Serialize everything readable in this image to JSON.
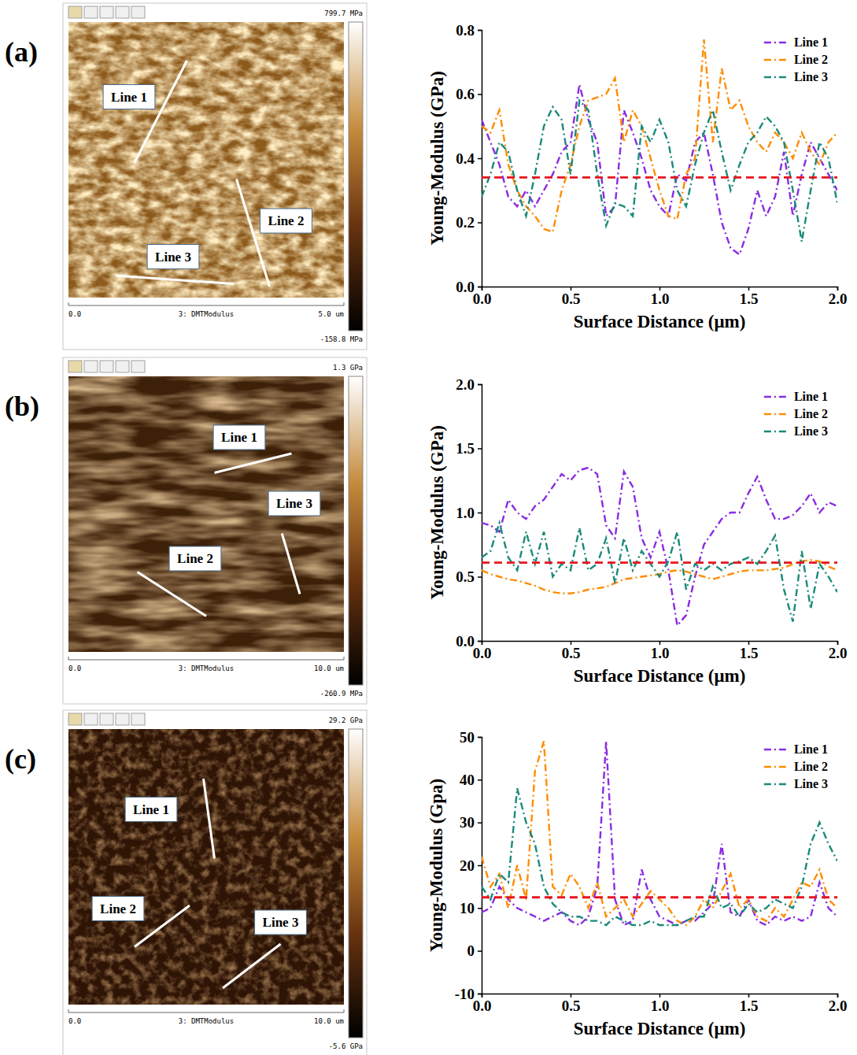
{
  "images": [
    {
      "panel_label": "(a)",
      "scale_max": "799.7 MPa",
      "scale_min": "-158.8 MPa",
      "x_start": "0.0",
      "channel": "3: DMTModulus",
      "x_end": "5.0 um",
      "lines": [
        "Line 1",
        "Line 2",
        "Line 3"
      ]
    },
    {
      "panel_label": "(b)",
      "scale_max": "1.3 GPa",
      "scale_min": "-260.9 MPa",
      "x_start": "0.0",
      "channel": "3: DMTModulus",
      "x_end": "10.0 um",
      "lines": [
        "Line 1",
        "Line 2",
        "Line 3"
      ]
    },
    {
      "panel_label": "(c)",
      "scale_max": "29.2 GPa",
      "scale_min": "-5.6 GPa",
      "x_start": "0.0",
      "channel": "3: DMTModulus",
      "x_end": "10.0 um",
      "lines": [
        "Line 1",
        "Line 2",
        "Line 3"
      ]
    }
  ],
  "chart_data": [
    {
      "type": "line",
      "x_label": "Surface Distance (μm)",
      "y_label": "Young-Modulus (GPa)",
      "x": [
        0,
        0.05,
        0.1,
        0.15,
        0.2,
        0.25,
        0.3,
        0.35,
        0.4,
        0.45,
        0.5,
        0.55,
        0.6,
        0.65,
        0.7,
        0.75,
        0.8,
        0.85,
        0.9,
        0.95,
        1,
        1.05,
        1.1,
        1.15,
        1.2,
        1.25,
        1.3,
        1.35,
        1.4,
        1.45,
        1.5,
        1.55,
        1.6,
        1.65,
        1.7,
        1.75,
        1.8,
        1.85,
        1.9,
        1.95,
        2
      ],
      "xlim": [
        0,
        2
      ],
      "xticks": [
        {
          "value": 0,
          "label": "0.0"
        },
        0.5,
        {
          "value": 1,
          "label": "1.0"
        },
        1.5,
        {
          "value": 2,
          "label": "2.0"
        }
      ],
      "ylim": [
        0,
        0.8
      ],
      "yticks": [
        {
          "value": 0,
          "label": "0.0"
        },
        0.2,
        0.4,
        0.6,
        0.8
      ],
      "mean_line": 0.34,
      "legend": "upper right",
      "line_style": "dashdot",
      "series": [
        {
          "name": "Line 1",
          "color": "#8a2be2",
          "values": [
            0.52,
            0.45,
            0.38,
            0.28,
            0.25,
            0.3,
            0.25,
            0.3,
            0.35,
            0.42,
            0.45,
            0.63,
            0.52,
            0.45,
            0.22,
            0.25,
            0.55,
            0.48,
            0.4,
            0.3,
            0.25,
            0.22,
            0.35,
            0.33,
            0.45,
            0.48,
            0.35,
            0.2,
            0.12,
            0.1,
            0.18,
            0.3,
            0.22,
            0.28,
            0.42,
            0.22,
            0.35,
            0.45,
            0.4,
            0.35,
            0.3
          ]
        },
        {
          "name": "Line 2",
          "color": "#ff8c00",
          "values": [
            0.5,
            0.48,
            0.55,
            0.38,
            0.3,
            0.25,
            0.22,
            0.18,
            0.17,
            0.3,
            0.38,
            0.5,
            0.58,
            0.59,
            0.6,
            0.65,
            0.45,
            0.55,
            0.5,
            0.4,
            0.3,
            0.22,
            0.21,
            0.35,
            0.4,
            0.77,
            0.45,
            0.68,
            0.55,
            0.58,
            0.5,
            0.45,
            0.42,
            0.48,
            0.45,
            0.4,
            0.48,
            0.42,
            0.38,
            0.45,
            0.48
          ]
        },
        {
          "name": "Line 3",
          "color": "#1a8a7a",
          "values": [
            0.28,
            0.35,
            0.45,
            0.42,
            0.3,
            0.22,
            0.35,
            0.5,
            0.56,
            0.52,
            0.35,
            0.58,
            0.55,
            0.35,
            0.19,
            0.26,
            0.25,
            0.22,
            0.5,
            0.45,
            0.52,
            0.45,
            0.3,
            0.25,
            0.38,
            0.48,
            0.55,
            0.42,
            0.3,
            0.38,
            0.45,
            0.48,
            0.53,
            0.5,
            0.45,
            0.3,
            0.14,
            0.3,
            0.45,
            0.4,
            0.26
          ]
        }
      ]
    },
    {
      "type": "line",
      "x_label": "Surface Distance (μm)",
      "y_label": "Young-Modulus (GPa)",
      "x": [
        0,
        0.05,
        0.1,
        0.15,
        0.2,
        0.25,
        0.3,
        0.35,
        0.4,
        0.45,
        0.5,
        0.55,
        0.6,
        0.65,
        0.7,
        0.75,
        0.8,
        0.85,
        0.9,
        0.95,
        1,
        1.05,
        1.1,
        1.15,
        1.2,
        1.25,
        1.3,
        1.35,
        1.4,
        1.45,
        1.5,
        1.55,
        1.6,
        1.65,
        1.7,
        1.75,
        1.8,
        1.85,
        1.9,
        1.95,
        2
      ],
      "xlim": [
        0,
        2
      ],
      "xticks": [
        {
          "value": 0,
          "label": "0.0"
        },
        0.5,
        {
          "value": 1,
          "label": "1.0"
        },
        1.5,
        {
          "value": 2,
          "label": "2.0"
        }
      ],
      "ylim": [
        0,
        2
      ],
      "yticks": [
        {
          "value": 0,
          "label": "0.0"
        },
        0.5,
        {
          "value": 1,
          "label": "1.0"
        },
        1.5,
        {
          "value": 2,
          "label": "2.0"
        }
      ],
      "mean_line": 0.61,
      "legend": "upper right",
      "line_style": "dashdot",
      "series": [
        {
          "name": "Line 1",
          "color": "#8a2be2",
          "values": [
            0.92,
            0.9,
            0.85,
            1.1,
            1.0,
            0.95,
            1.05,
            1.1,
            1.2,
            1.3,
            1.25,
            1.33,
            1.35,
            1.3,
            0.9,
            0.8,
            1.32,
            1.2,
            0.8,
            0.65,
            0.85,
            0.55,
            0.12,
            0.2,
            0.5,
            0.75,
            0.85,
            0.95,
            1.0,
            1.0,
            1.15,
            1.28,
            1.1,
            0.95,
            0.95,
            0.98,
            1.05,
            1.15,
            1.0,
            1.08,
            1.05
          ]
        },
        {
          "name": "Line 2",
          "color": "#ff8c00",
          "values": [
            0.55,
            0.52,
            0.5,
            0.48,
            0.47,
            0.45,
            0.43,
            0.4,
            0.38,
            0.37,
            0.37,
            0.38,
            0.4,
            0.41,
            0.42,
            0.45,
            0.48,
            0.49,
            0.5,
            0.51,
            0.52,
            0.54,
            0.55,
            0.54,
            0.52,
            0.5,
            0.48,
            0.5,
            0.52,
            0.54,
            0.55,
            0.55,
            0.55,
            0.56,
            0.57,
            0.6,
            0.62,
            0.63,
            0.62,
            0.58,
            0.55
          ]
        },
        {
          "name": "Line 3",
          "color": "#1a8a7a",
          "values": [
            0.65,
            0.7,
            0.92,
            0.65,
            0.55,
            0.85,
            0.6,
            0.85,
            0.5,
            0.6,
            0.55,
            0.88,
            0.55,
            0.6,
            0.8,
            0.45,
            0.8,
            0.55,
            0.7,
            0.6,
            0.5,
            0.62,
            0.85,
            0.4,
            0.6,
            0.55,
            0.6,
            0.55,
            0.6,
            0.62,
            0.65,
            0.6,
            0.7,
            0.82,
            0.4,
            0.15,
            0.7,
            0.25,
            0.6,
            0.5,
            0.38
          ]
        }
      ]
    },
    {
      "type": "line",
      "x_label": "Surface Distance (μm)",
      "y_label": "Young-Modulus (Gpa)",
      "x": [
        0,
        0.05,
        0.1,
        0.15,
        0.2,
        0.25,
        0.3,
        0.35,
        0.4,
        0.45,
        0.5,
        0.55,
        0.6,
        0.65,
        0.7,
        0.75,
        0.8,
        0.85,
        0.9,
        0.95,
        1,
        1.05,
        1.1,
        1.15,
        1.2,
        1.25,
        1.3,
        1.35,
        1.4,
        1.45,
        1.5,
        1.55,
        1.6,
        1.65,
        1.7,
        1.75,
        1.8,
        1.85,
        1.9,
        1.95,
        2
      ],
      "xlim": [
        0,
        2
      ],
      "xticks": [
        {
          "value": 0,
          "label": "0.0"
        },
        0.5,
        {
          "value": 1,
          "label": "1.0"
        },
        1.5,
        {
          "value": 2,
          "label": "2.0"
        }
      ],
      "ylim": [
        -10,
        50
      ],
      "yticks": [
        -10,
        0,
        10,
        20,
        30,
        40,
        50
      ],
      "mean_line": 12.5,
      "legend": "upper right",
      "line_style": "dashdot",
      "series": [
        {
          "name": "Line 1",
          "color": "#8a2be2",
          "values": [
            9,
            10,
            15,
            12,
            10,
            9,
            8,
            7,
            8,
            9,
            7,
            6,
            8,
            15,
            49,
            12,
            6,
            7,
            19,
            12,
            8,
            7,
            6,
            7,
            7,
            9,
            11,
            25,
            9,
            8,
            12,
            7,
            6,
            8,
            7,
            8,
            7,
            8,
            16,
            10,
            8
          ]
        },
        {
          "name": "Line 2",
          "color": "#ff8c00",
          "values": [
            22,
            15,
            18,
            10,
            20,
            12,
            42,
            49,
            15,
            13,
            18,
            15,
            10,
            16,
            8,
            10,
            12,
            8,
            11,
            14,
            12,
            10,
            7,
            6,
            8,
            12,
            10,
            14,
            18,
            10,
            12,
            8,
            7,
            10,
            8,
            12,
            16,
            15,
            19,
            12,
            10
          ]
        },
        {
          "name": "Line 3",
          "color": "#1a8a7a",
          "values": [
            15,
            12,
            18,
            16,
            38,
            30,
            25,
            15,
            11,
            9,
            8,
            8,
            7,
            7,
            6,
            8,
            7,
            6,
            6,
            7,
            6,
            6,
            6,
            7,
            8,
            8,
            15,
            10,
            11,
            8,
            11,
            9,
            10,
            12,
            11,
            10,
            15,
            25,
            30,
            25,
            21
          ]
        }
      ]
    }
  ]
}
